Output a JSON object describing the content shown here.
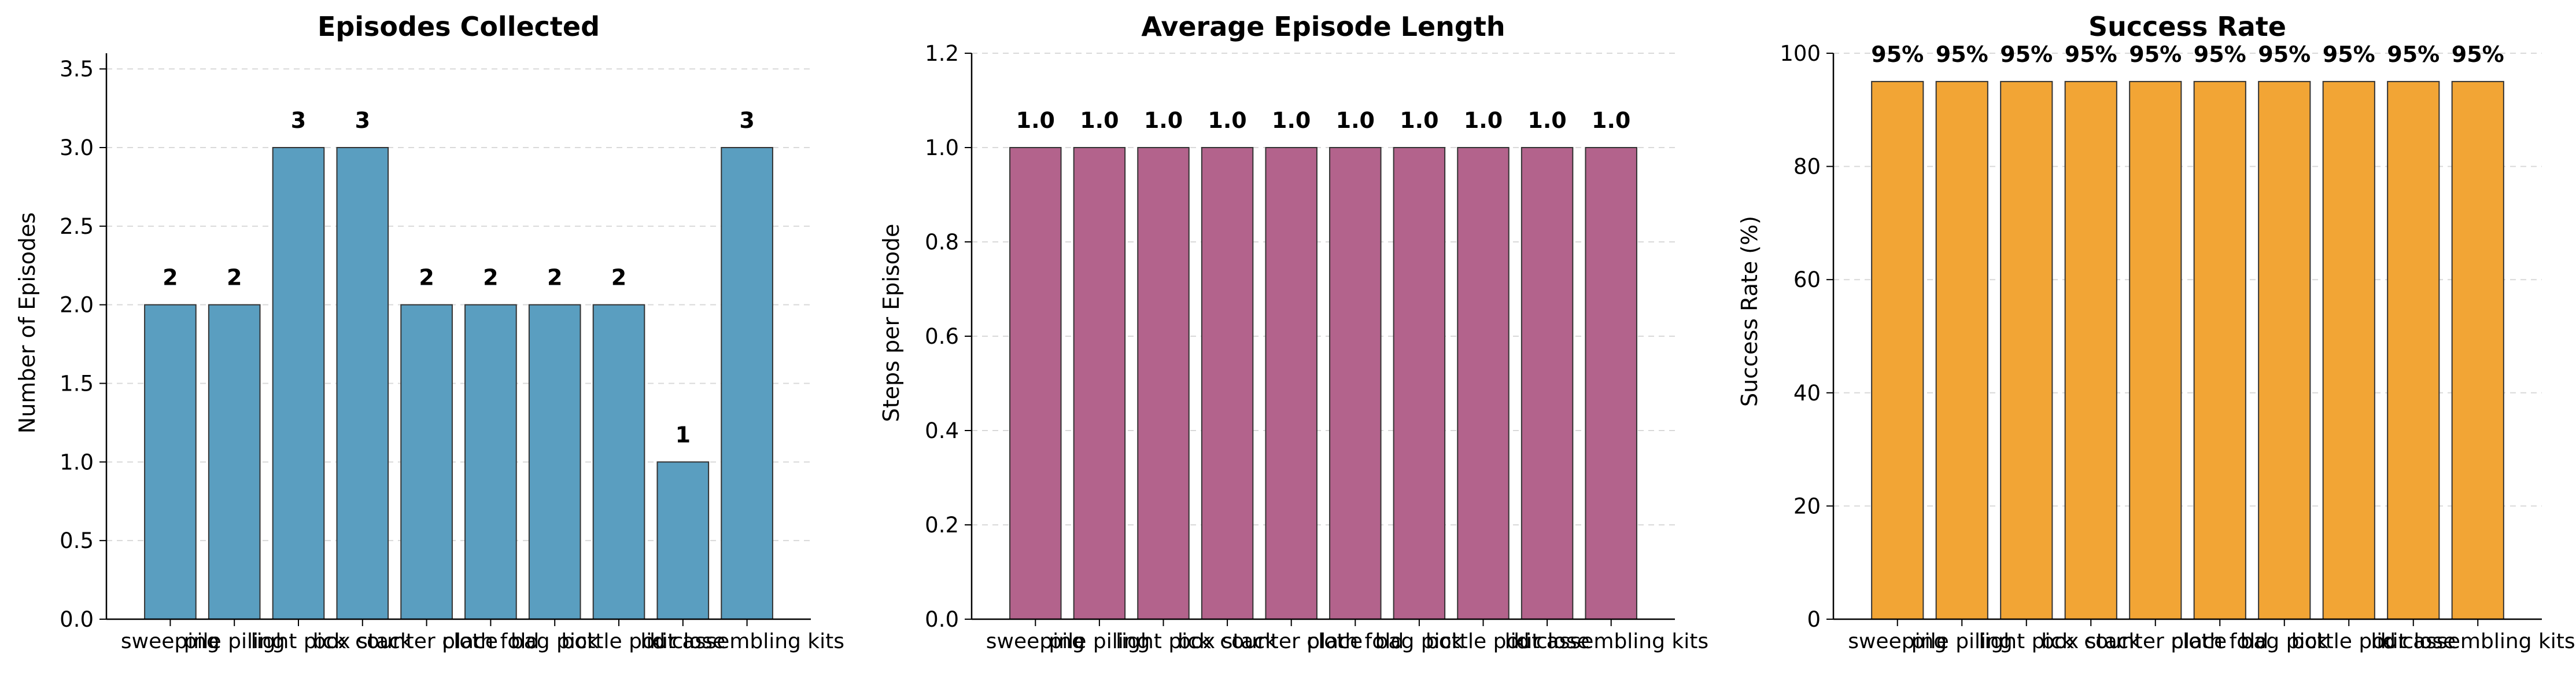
{
  "chart_data": [
    {
      "type": "bar",
      "title": "Episodes Collected",
      "xlabel": "",
      "ylabel": "Number of Episodes",
      "ylim": [
        0,
        3.6
      ],
      "yticks": [
        "0.0",
        "0.5",
        "1.0",
        "1.5",
        "2.0",
        "2.5",
        "3.0",
        "3.5"
      ],
      "categories": [
        "sweeping",
        "pile piling",
        "light pick",
        "box stack",
        "counter place",
        "cloth fold",
        "bag pick",
        "bottle pour",
        "lid close",
        "kit assembling kits"
      ],
      "values": [
        2,
        2,
        3,
        3,
        2,
        2,
        2,
        2,
        1,
        3
      ],
      "data_labels": [
        "2",
        "2",
        "3",
        "3",
        "2",
        "2",
        "2",
        "2",
        "1",
        "3"
      ],
      "color": "#5a9ec0",
      "grid": "y-dashed"
    },
    {
      "type": "bar",
      "title": "Average Episode Length",
      "xlabel": "",
      "ylabel": "Steps per Episode",
      "ylim": [
        0,
        1.2
      ],
      "yticks": [
        "0.0",
        "0.2",
        "0.4",
        "0.6",
        "0.8",
        "1.0",
        "1.2"
      ],
      "categories": [
        "sweeping",
        "pile piling",
        "light pick",
        "box stack",
        "counter place",
        "cloth fold",
        "bag pick",
        "bottle pour",
        "lid close",
        "kit assembling kits"
      ],
      "values": [
        1.0,
        1.0,
        1.0,
        1.0,
        1.0,
        1.0,
        1.0,
        1.0,
        1.0,
        1.0
      ],
      "data_labels": [
        "1.0",
        "1.0",
        "1.0",
        "1.0",
        "1.0",
        "1.0",
        "1.0",
        "1.0",
        "1.0",
        "1.0"
      ],
      "color": "#b3638c",
      "grid": "y-dashed"
    },
    {
      "type": "bar",
      "title": "Success Rate",
      "xlabel": "",
      "ylabel": "Success Rate (%)",
      "ylim": [
        0,
        100
      ],
      "yticks": [
        "0",
        "20",
        "40",
        "60",
        "80",
        "100"
      ],
      "categories": [
        "sweeping",
        "pile piling",
        "light pick",
        "box stack",
        "counter place",
        "cloth fold",
        "bag pick",
        "bottle pour",
        "lid close",
        "kit assembling kits"
      ],
      "values": [
        95,
        95,
        95,
        95,
        95,
        95,
        95,
        95,
        95,
        95
      ],
      "data_labels": [
        "95%",
        "95%",
        "95%",
        "95%",
        "95%",
        "95%",
        "95%",
        "95%",
        "95%",
        "95%"
      ],
      "color": "#f2a535",
      "grid": "y-dashed"
    }
  ]
}
